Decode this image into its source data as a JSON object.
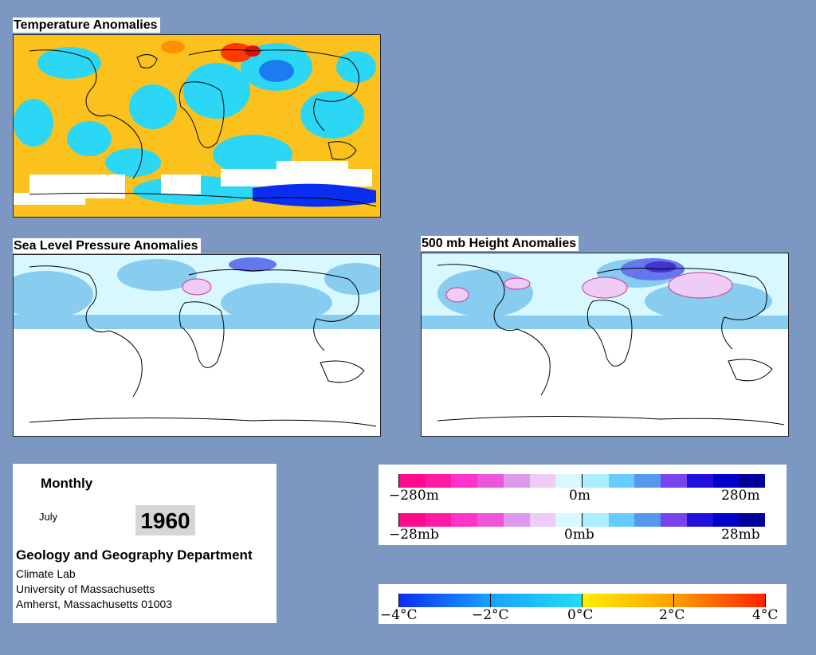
{
  "panels": {
    "temperature": {
      "title": "Temperature Anomalies"
    },
    "slp": {
      "title": "Sea Level Pressure Anomalies"
    },
    "height": {
      "title": "500 mb Height Anomalies"
    }
  },
  "info": {
    "period": "Monthly",
    "month": "July",
    "year": "1960",
    "department": "Geology and Geography Department",
    "lab": "Climate Lab",
    "university": "University of Massachusetts",
    "address": "Amherst, Massachusetts 01003"
  },
  "legends": {
    "height": {
      "left": "−280m",
      "mid": "0m",
      "right": "280m"
    },
    "pressure": {
      "left": "−28mb",
      "mid": "0mb",
      "right": "28mb"
    },
    "temperature": {
      "t1": "−4°C",
      "t2": "−2°C",
      "t3": "0°C",
      "t4": "2°C",
      "t5": "4°C"
    }
  },
  "colors": {
    "background": "#7b97c2",
    "anomaly_scale": [
      "#ff0a8c",
      "#ff1aa5",
      "#ff33cc",
      "#ee55dd",
      "#dd99ee",
      "#eeccf5",
      "#d8f8ff",
      "#aaeeff",
      "#66ccff",
      "#5599ee",
      "#7744ee",
      "#2211dd",
      "#0000cc",
      "#000099"
    ],
    "temperature_scale": [
      "#0a2ef0",
      "#1aa0ff",
      "#22ddf5",
      "#ffee00",
      "#ffa000",
      "#ff2200"
    ]
  }
}
